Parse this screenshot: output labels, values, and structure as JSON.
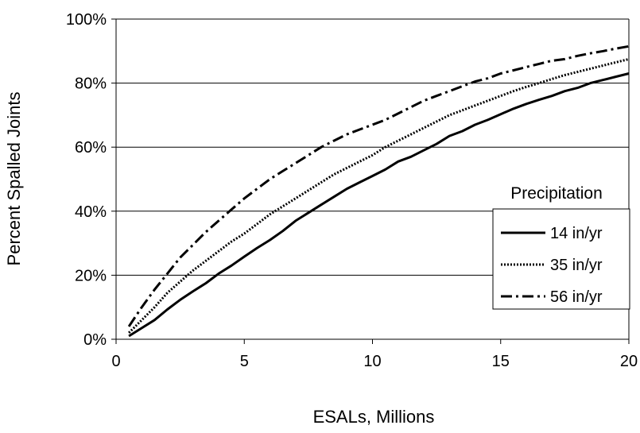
{
  "chart_data": {
    "type": "line",
    "xlabel": "ESALs, Millions",
    "ylabel": "Percent Spalled Joints",
    "xlim": [
      0,
      20
    ],
    "ylim": [
      0,
      100
    ],
    "x_ticks": [
      0,
      5,
      10,
      15,
      20
    ],
    "x_tick_labels": [
      "0",
      "5",
      "10",
      "15",
      "20"
    ],
    "y_ticks": [
      0,
      20,
      40,
      60,
      80,
      100
    ],
    "y_tick_labels": [
      "0%",
      "20%",
      "40%",
      "60%",
      "80%",
      "100%"
    ],
    "grid": "horizontal",
    "legend": {
      "title": "Precipitation",
      "placement": "right"
    },
    "series": [
      {
        "name": "14 in/yr",
        "style": "solid",
        "x": [
          0.5,
          1,
          1.5,
          2,
          2.5,
          3,
          3.5,
          4,
          4.5,
          5,
          5.5,
          6,
          6.5,
          7,
          7.5,
          8,
          8.5,
          9,
          9.5,
          10,
          10.5,
          11,
          11.5,
          12,
          12.5,
          13,
          13.5,
          14,
          14.5,
          15,
          15.5,
          16,
          16.5,
          17,
          17.5,
          18,
          18.5,
          19,
          19.5,
          20
        ],
        "values": [
          1,
          3.5,
          6,
          9.3,
          12.3,
          15,
          17.5,
          20.5,
          23,
          25.8,
          28.5,
          31,
          33.8,
          37,
          39.5,
          42,
          44.5,
          47,
          49,
          51,
          53,
          55.5,
          57,
          59,
          61,
          63.5,
          65,
          67,
          68.5,
          70.3,
          72,
          73.5,
          74.8,
          76,
          77.5,
          78.5,
          80,
          81,
          82,
          83
        ]
      },
      {
        "name": "35 in/yr",
        "style": "dotted",
        "x": [
          0.5,
          1,
          1.5,
          2,
          2.5,
          3,
          3.5,
          4,
          4.5,
          5,
          5.5,
          6,
          6.5,
          7,
          7.5,
          8,
          8.5,
          9,
          9.5,
          10,
          10.5,
          11,
          11.5,
          12,
          12.5,
          13,
          13.5,
          14,
          14.5,
          15,
          15.5,
          16,
          16.5,
          17,
          17.5,
          18,
          18.5,
          19,
          19.5,
          20
        ],
        "values": [
          2,
          6,
          10,
          14.5,
          18,
          21.5,
          24.5,
          27.5,
          30.5,
          33,
          36,
          39,
          41.5,
          44,
          46.5,
          49,
          51.5,
          53.5,
          55.5,
          57.5,
          60,
          62,
          64,
          66,
          68,
          70,
          71.5,
          73,
          74.5,
          76,
          77.5,
          78.8,
          80,
          81.3,
          82.5,
          83.5,
          84.5,
          85.5,
          86.5,
          87.5
        ]
      },
      {
        "name": "56 in/yr",
        "style": "dash-dot",
        "x": [
          0.5,
          1,
          1.5,
          2,
          2.5,
          3,
          3.5,
          4,
          4.5,
          5,
          5.5,
          6,
          6.5,
          7,
          7.5,
          8,
          8.5,
          9,
          9.5,
          10,
          10.5,
          11,
          11.5,
          12,
          12.5,
          13,
          13.5,
          14,
          14.5,
          15,
          15.5,
          16,
          16.5,
          17,
          17.5,
          18,
          18.5,
          19,
          19.5,
          20
        ],
        "values": [
          4,
          10,
          15.5,
          20.5,
          25.5,
          29.5,
          33.5,
          37,
          40.5,
          44,
          47,
          50,
          52.5,
          55,
          57.5,
          60,
          62,
          64,
          65.5,
          67,
          68.5,
          70.5,
          72.5,
          74.5,
          76,
          77.5,
          79,
          80.5,
          81.5,
          83,
          84,
          85,
          86,
          87,
          87.5,
          88.5,
          89.3,
          90,
          90.8,
          91.5
        ]
      }
    ]
  }
}
